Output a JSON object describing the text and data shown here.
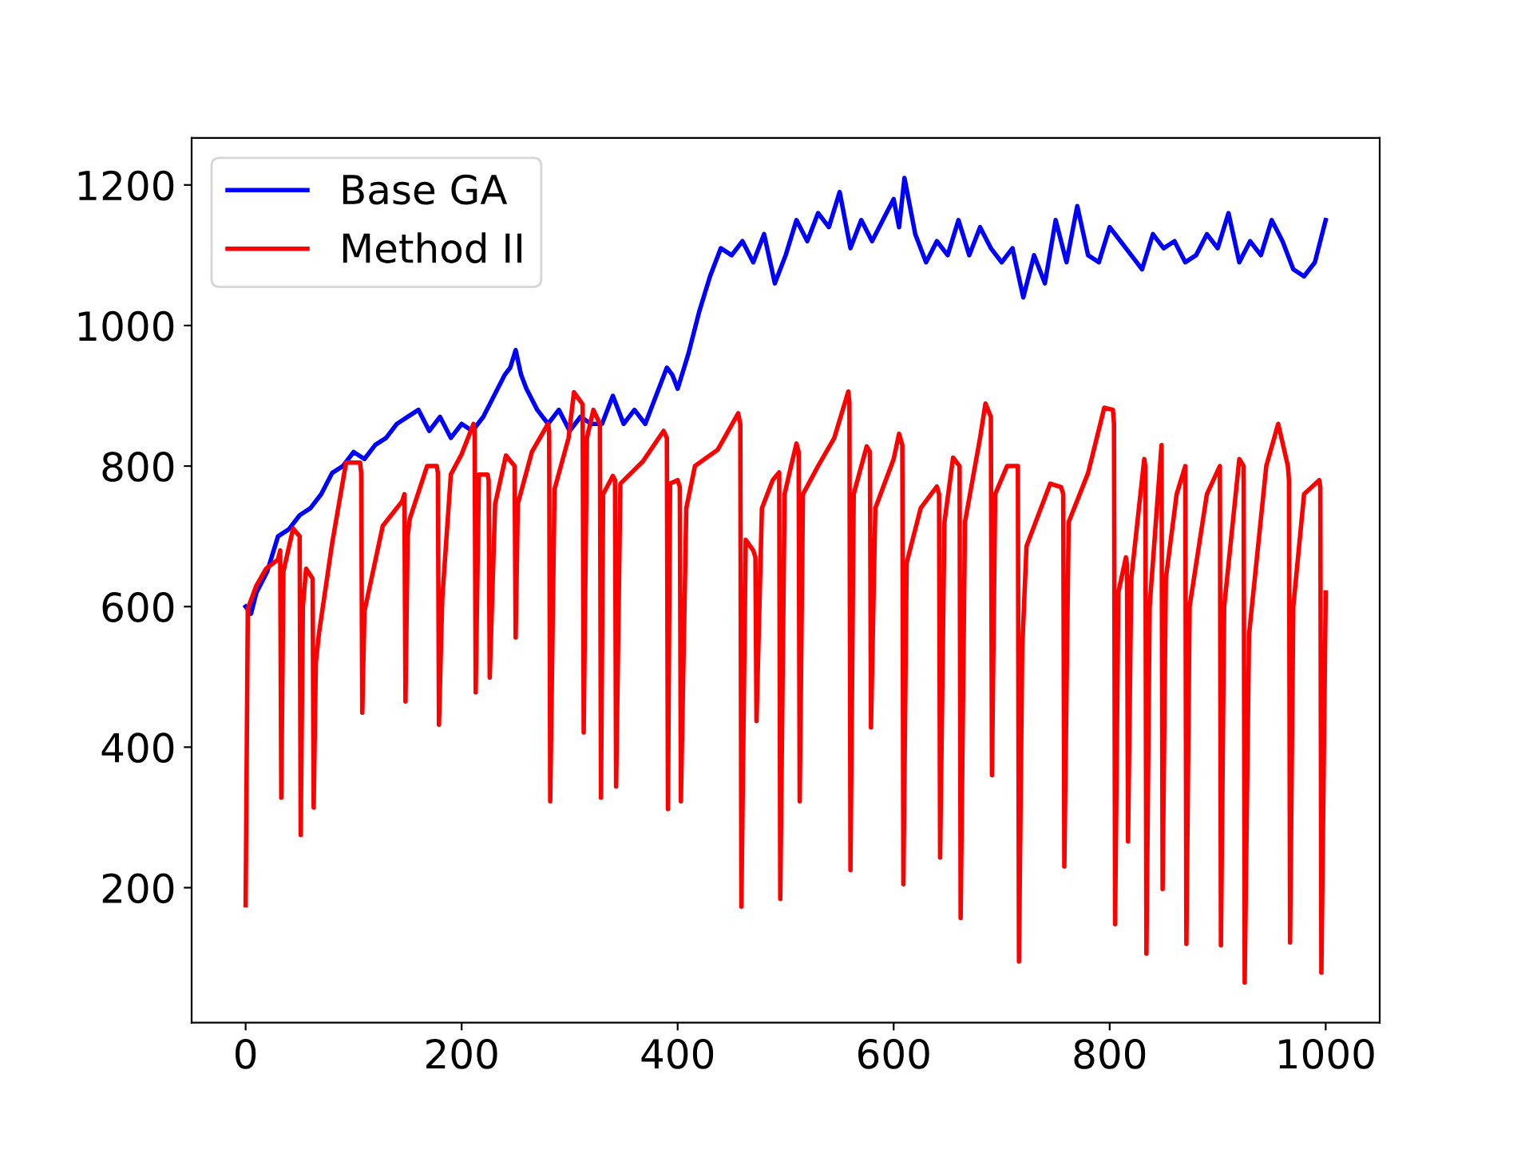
{
  "chart_data": {
    "type": "line",
    "xlim": [
      -50,
      1050
    ],
    "ylim": [
      8,
      1267
    ],
    "xticks": [
      0,
      200,
      400,
      600,
      800,
      1000
    ],
    "yticks": [
      200,
      400,
      600,
      800,
      1000,
      1200
    ],
    "grid": false,
    "legend": "top left",
    "line_style": "solid",
    "series": [
      {
        "name": "Base GA",
        "color": "#0000ff",
        "x": [
          0,
          5,
          10,
          20,
          30,
          40,
          50,
          60,
          70,
          80,
          90,
          100,
          110,
          120,
          130,
          140,
          150,
          160,
          170,
          180,
          190,
          200,
          210,
          220,
          230,
          240,
          245,
          250,
          255,
          260,
          270,
          280,
          290,
          300,
          310,
          320,
          330,
          340,
          350,
          360,
          370,
          380,
          390,
          395,
          400,
          410,
          420,
          430,
          440,
          450,
          460,
          470,
          480,
          490,
          500,
          510,
          520,
          530,
          540,
          550,
          560,
          570,
          580,
          590,
          600,
          605,
          610,
          620,
          630,
          640,
          650,
          660,
          670,
          680,
          690,
          700,
          710,
          720,
          730,
          740,
          750,
          760,
          770,
          780,
          790,
          800,
          810,
          820,
          830,
          840,
          850,
          860,
          870,
          880,
          890,
          900,
          910,
          920,
          930,
          940,
          950,
          960,
          970,
          980,
          990,
          1000
        ],
        "values": [
          600,
          590,
          620,
          650,
          700,
          710,
          730,
          740,
          760,
          790,
          800,
          820,
          810,
          830,
          840,
          860,
          870,
          880,
          850,
          870,
          840,
          860,
          850,
          870,
          900,
          930,
          940,
          965,
          930,
          910,
          880,
          860,
          880,
          850,
          870,
          860,
          860,
          900,
          860,
          880,
          860,
          900,
          940,
          930,
          910,
          960,
          1020,
          1070,
          1110,
          1100,
          1120,
          1090,
          1130,
          1060,
          1100,
          1150,
          1120,
          1160,
          1140,
          1190,
          1110,
          1150,
          1120,
          1150,
          1180,
          1140,
          1210,
          1130,
          1090,
          1120,
          1100,
          1150,
          1100,
          1140,
          1110,
          1090,
          1110,
          1040,
          1100,
          1060,
          1150,
          1090,
          1170,
          1100,
          1090,
          1140,
          1120,
          1100,
          1080,
          1130,
          1110,
          1120,
          1090,
          1100,
          1130,
          1110,
          1160,
          1090,
          1120,
          1100,
          1150,
          1120,
          1080,
          1070,
          1090,
          1150
        ]
      },
      {
        "name": "Method II",
        "color": "#ff0000",
        "x": [
          0,
          2,
          10,
          19,
          30,
          32,
          33,
          35,
          44,
          50,
          51,
          53,
          56,
          62,
          63,
          65,
          68,
          80,
          93,
          106,
          107,
          108,
          110,
          127,
          145,
          147,
          148,
          150,
          152,
          168,
          177,
          178,
          179,
          182,
          190,
          200,
          211,
          212,
          213,
          216,
          224,
          225,
          226,
          231,
          241,
          249,
          250,
          252,
          265,
          280,
          281,
          282,
          286,
          299,
          304,
          312,
          313,
          316,
          322,
          328,
          329,
          331,
          340,
          342,
          343,
          347,
          368,
          387,
          390,
          391,
          393,
          400,
          402,
          403,
          408,
          416,
          437,
          456,
          458,
          459,
          463,
          470,
          472,
          473,
          478,
          488,
          494,
          495,
          499,
          505,
          510,
          512,
          513,
          516,
          530,
          545,
          558,
          559,
          560,
          563,
          575,
          578,
          579,
          583,
          600,
          605,
          608,
          609,
          612,
          625,
          640,
          642,
          643,
          647,
          655,
          661,
          662,
          666,
          680,
          685,
          690,
          691,
          694,
          705,
          715,
          716,
          719,
          723,
          745,
          755,
          757,
          758,
          762,
          780,
          795,
          803,
          804,
          805,
          808,
          815,
          816,
          817,
          820,
          832,
          833,
          834,
          837,
          848,
          849,
          852,
          862,
          870,
          871,
          874,
          890,
          902,
          903,
          906,
          920,
          924,
          925,
          929,
          945,
          956,
          965,
          966,
          967,
          970,
          980,
          994,
          995,
          996,
          1000
        ],
        "values": [
          175,
          597,
          630,
          654,
          667,
          680,
          328,
          650,
          711,
          700,
          275,
          600,
          654,
          640,
          314,
          520,
          563,
          689,
          805,
          805,
          790,
          449,
          593,
          715,
          750,
          760,
          465,
          700,
          725,
          800,
          800,
          790,
          432,
          610,
          788,
          817,
          860,
          850,
          478,
          788,
          788,
          780,
          499,
          746,
          815,
          800,
          556,
          746,
          820,
          860,
          850,
          323,
          767,
          840,
          905,
          888,
          421,
          840,
          880,
          860,
          328,
          760,
          786,
          780,
          344,
          775,
          807,
          850,
          840,
          312,
          775,
          780,
          770,
          323,
          740,
          800,
          823,
          875,
          860,
          173,
          695,
          680,
          670,
          437,
          740,
          780,
          791,
          184,
          760,
          800,
          832,
          820,
          323,
          760,
          800,
          840,
          906,
          890,
          225,
          760,
          828,
          820,
          428,
          740,
          810,
          846,
          830,
          205,
          662,
          740,
          771,
          760,
          243,
          720,
          812,
          800,
          157,
          720,
          840,
          889,
          870,
          360,
          760,
          800,
          800,
          95,
          540,
          686,
          775,
          770,
          760,
          230,
          720,
          790,
          883,
          880,
          860,
          148,
          620,
          670,
          660,
          266,
          640,
          810,
          800,
          106,
          600,
          830,
          198,
          640,
          760,
          800,
          120,
          600,
          760,
          800,
          118,
          600,
          810,
          800,
          65,
          560,
          800,
          860,
          800,
          780,
          122,
          600,
          760,
          780,
          770,
          79,
          620
        ]
      }
    ]
  }
}
